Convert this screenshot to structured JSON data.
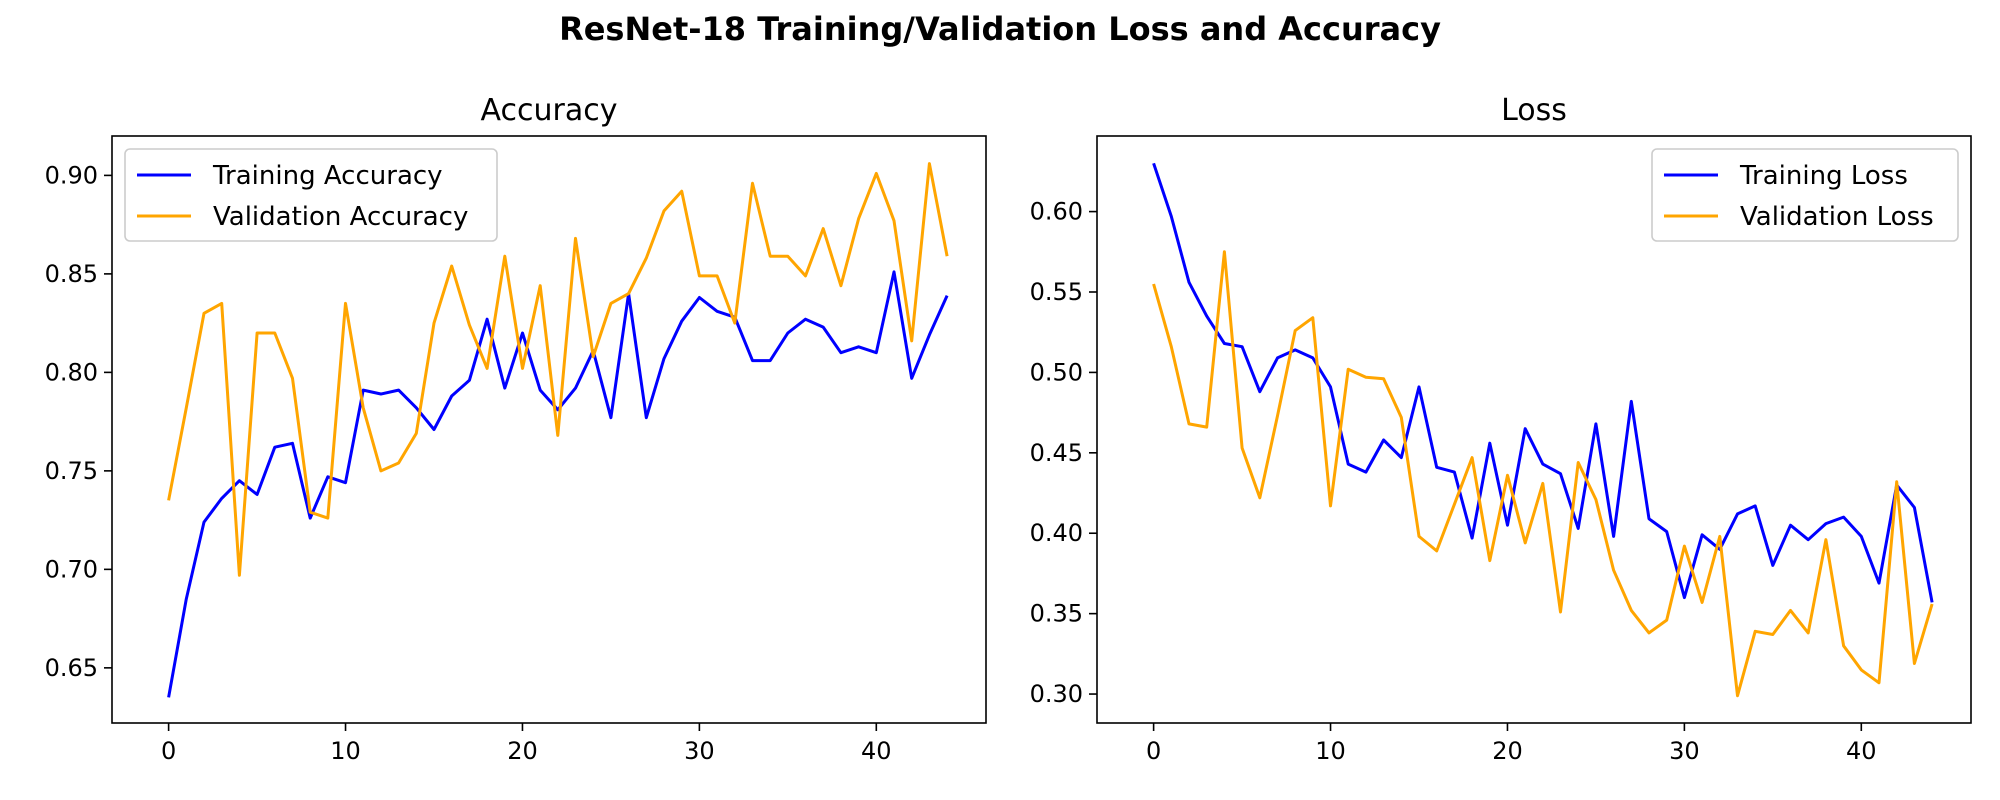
{
  "suptitle": "ResNet-18 Training/Validation Loss and Accuracy",
  "chart_data": [
    {
      "type": "line",
      "title": "Accuracy",
      "xlabel": "",
      "ylabel": "",
      "xlim": [
        -3.2,
        46.2
      ],
      "ylim": [
        0.622,
        0.92
      ],
      "xticks": [
        0,
        10,
        20,
        30,
        40
      ],
      "yticks": [
        0.65,
        0.7,
        0.75,
        0.8,
        0.85,
        0.9
      ],
      "ytick_labels": [
        "0.65",
        "0.70",
        "0.75",
        "0.80",
        "0.85",
        "0.90"
      ],
      "legend_position": "top-left",
      "grid": false,
      "x": [
        0,
        1,
        2,
        3,
        4,
        5,
        6,
        7,
        8,
        9,
        10,
        11,
        12,
        13,
        14,
        15,
        16,
        17,
        18,
        19,
        20,
        21,
        22,
        23,
        24,
        25,
        26,
        27,
        28,
        29,
        30,
        31,
        32,
        33,
        34,
        35,
        36,
        37,
        38,
        39,
        40,
        41,
        42,
        43,
        44
      ],
      "series": [
        {
          "name": "Training Accuracy",
          "color": "#0000ff",
          "values": [
            0.635,
            0.685,
            0.724,
            0.736,
            0.745,
            0.738,
            0.762,
            0.764,
            0.726,
            0.747,
            0.744,
            0.791,
            0.789,
            0.791,
            0.782,
            0.771,
            0.788,
            0.796,
            0.827,
            0.792,
            0.82,
            0.791,
            0.781,
            0.792,
            0.811,
            0.777,
            0.84,
            0.777,
            0.807,
            0.826,
            0.838,
            0.831,
            0.828,
            0.806,
            0.806,
            0.82,
            0.827,
            0.823,
            0.81,
            0.813,
            0.81,
            0.851,
            0.797,
            0.819,
            0.839
          ]
        },
        {
          "name": "Validation Accuracy",
          "color": "#ffa500",
          "values": [
            0.735,
            0.782,
            0.83,
            0.835,
            0.697,
            0.82,
            0.82,
            0.797,
            0.729,
            0.726,
            0.835,
            0.782,
            0.75,
            0.754,
            0.769,
            0.825,
            0.854,
            0.824,
            0.802,
            0.859,
            0.802,
            0.844,
            0.768,
            0.868,
            0.808,
            0.835,
            0.84,
            0.858,
            0.882,
            0.892,
            0.849,
            0.849,
            0.825,
            0.896,
            0.859,
            0.859,
            0.849,
            0.873,
            0.844,
            0.878,
            0.901,
            0.877,
            0.816,
            0.906,
            0.859
          ]
        }
      ]
    },
    {
      "type": "line",
      "title": "Loss",
      "xlabel": "",
      "ylabel": "",
      "xlim": [
        -3.2,
        46.2
      ],
      "ylim": [
        0.282,
        0.647
      ],
      "xticks": [
        0,
        10,
        20,
        30,
        40
      ],
      "yticks": [
        0.3,
        0.35,
        0.4,
        0.45,
        0.5,
        0.55,
        0.6
      ],
      "ytick_labels": [
        "0.30",
        "0.35",
        "0.40",
        "0.45",
        "0.50",
        "0.55",
        "0.60"
      ],
      "legend_position": "top-right",
      "grid": false,
      "x": [
        0,
        1,
        2,
        3,
        4,
        5,
        6,
        7,
        8,
        9,
        10,
        11,
        12,
        13,
        14,
        15,
        16,
        17,
        18,
        19,
        20,
        21,
        22,
        23,
        24,
        25,
        26,
        27,
        28,
        29,
        30,
        31,
        32,
        33,
        34,
        35,
        36,
        37,
        38,
        39,
        40,
        41,
        42,
        43,
        44
      ],
      "series": [
        {
          "name": "Training Loss",
          "color": "#0000ff",
          "values": [
            0.63,
            0.597,
            0.556,
            0.535,
            0.518,
            0.516,
            0.488,
            0.509,
            0.514,
            0.509,
            0.491,
            0.443,
            0.438,
            0.458,
            0.447,
            0.491,
            0.441,
            0.438,
            0.397,
            0.456,
            0.405,
            0.465,
            0.443,
            0.437,
            0.403,
            0.468,
            0.398,
            0.482,
            0.409,
            0.401,
            0.36,
            0.399,
            0.39,
            0.412,
            0.417,
            0.38,
            0.405,
            0.396,
            0.406,
            0.41,
            0.398,
            0.369,
            0.43,
            0.416,
            0.357
          ]
        },
        {
          "name": "Validation Loss",
          "color": "#ffa500",
          "values": [
            0.555,
            0.516,
            0.468,
            0.466,
            0.575,
            0.453,
            0.422,
            0.473,
            0.526,
            0.534,
            0.417,
            0.502,
            0.497,
            0.496,
            0.472,
            0.398,
            0.389,
            0.418,
            0.447,
            0.383,
            0.436,
            0.394,
            0.431,
            0.351,
            0.444,
            0.421,
            0.377,
            0.352,
            0.338,
            0.346,
            0.392,
            0.357,
            0.398,
            0.299,
            0.339,
            0.337,
            0.352,
            0.338,
            0.396,
            0.33,
            0.315,
            0.307,
            0.432,
            0.319,
            0.356
          ]
        }
      ]
    }
  ]
}
